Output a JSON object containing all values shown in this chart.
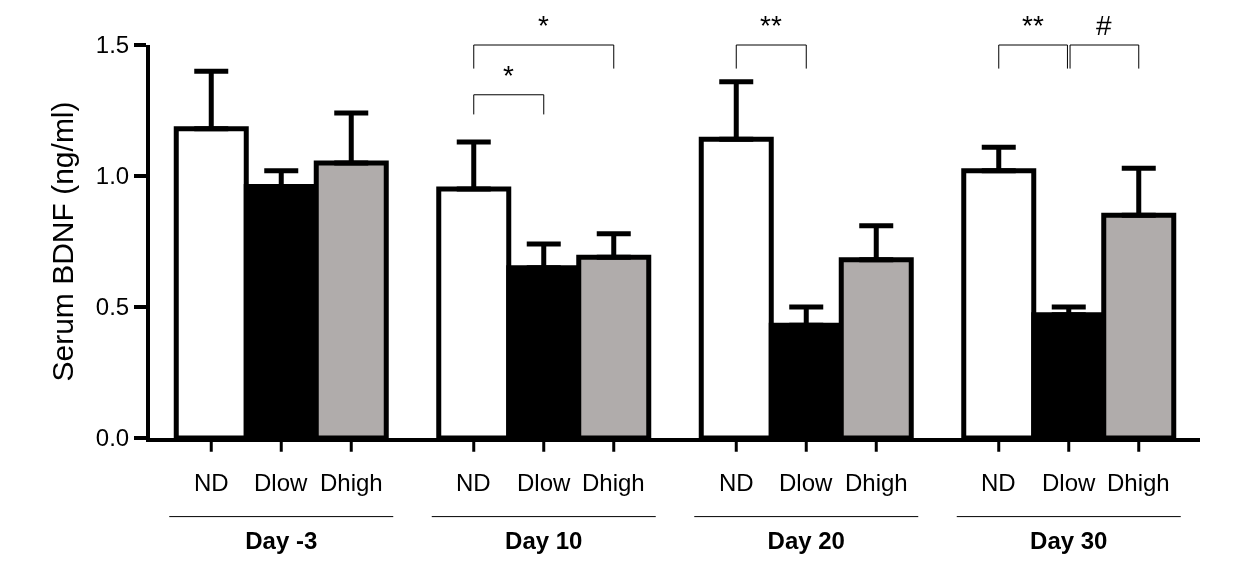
{
  "chart_data": {
    "type": "bar",
    "ylabel": "Serum BDNF (ng/ml)",
    "categories": [
      "Day -3",
      "Day 10",
      "Day 20",
      "Day 30"
    ],
    "series": [
      {
        "name": "ND",
        "color": "#ffffff",
        "values": [
          1.18,
          0.95,
          1.14,
          1.02
        ],
        "errors": [
          [
            1.18,
            1.4
          ],
          [
            0.95,
            1.13
          ],
          [
            1.14,
            1.36
          ],
          [
            1.02,
            1.11
          ]
        ]
      },
      {
        "name": "Dlow",
        "color": "#000000",
        "values": [
          0.96,
          0.65,
          0.43,
          0.47
        ],
        "errors": [
          [
            0.96,
            1.02
          ],
          [
            0.65,
            0.74
          ],
          [
            0.43,
            0.5
          ],
          [
            0.47,
            0.5
          ]
        ]
      },
      {
        "name": "Dhigh",
        "color": "#b0acab",
        "values": [
          1.05,
          0.69,
          0.68,
          0.85
        ],
        "errors": [
          [
            1.05,
            1.24
          ],
          [
            0.69,
            0.78
          ],
          [
            0.68,
            0.81
          ],
          [
            0.85,
            1.03
          ]
        ]
      }
    ],
    "ylim": [
      0,
      1.5
    ],
    "yticks": [
      {
        "value": 0,
        "label": "0.0"
      },
      {
        "value": 0.5,
        "label": "0.5"
      },
      {
        "value": 1,
        "label": "1.0"
      },
      {
        "value": 1.5,
        "label": "1.5"
      }
    ],
    "grid": false,
    "legend": "bottom",
    "annotations": [
      "*",
      "*",
      "**",
      "**",
      "#"
    ]
  }
}
